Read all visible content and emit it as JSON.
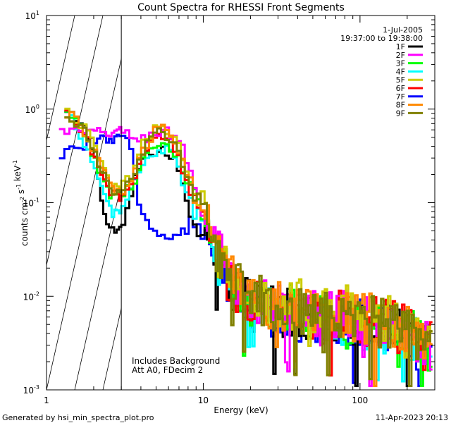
{
  "chart_data": {
    "type": "line",
    "title": "Count Spectra for RHESSI Front Segments",
    "xlabel": "Energy (keV)",
    "ylabel": "counts cm^-2 s^-1 keV^-1",
    "x_scale": "log",
    "y_scale": "log",
    "xlim": [
      1,
      300
    ],
    "ylim": [
      0.001,
      10
    ],
    "x_ticks": [
      {
        "value": 1,
        "label": "1"
      },
      {
        "value": 10,
        "label": "10"
      },
      {
        "value": 100,
        "label": "100"
      }
    ],
    "y_ticks": [
      {
        "value": 10,
        "base": "10",
        "exp": "1"
      },
      {
        "value": 1,
        "base": "10",
        "exp": "0"
      },
      {
        "value": 0.1,
        "base": "10",
        "exp": "-1"
      },
      {
        "value": 0.01,
        "base": "10",
        "exp": "-2"
      },
      {
        "value": 0.001,
        "base": "10",
        "exp": "-3"
      }
    ],
    "legend_position": "top-right",
    "date": "1-Jul-2005",
    "time_range": "19:37:00 to 19:38:00",
    "hatched_region_max_keV": 3,
    "annotations": [
      "Includes Background",
      "Att A0, FDecim 2"
    ],
    "series": [
      {
        "name": "1F",
        "color": "#000000",
        "anchors": [
          [
            1.3,
            0.95
          ],
          [
            1.5,
            0.78
          ],
          [
            1.8,
            0.58
          ],
          [
            2.1,
            0.25
          ],
          [
            2.4,
            0.06
          ],
          [
            2.7,
            0.05
          ],
          [
            3.0,
            0.05
          ],
          [
            3.3,
            0.08
          ],
          [
            3.7,
            0.2
          ],
          [
            4.2,
            0.3
          ],
          [
            5.0,
            0.36
          ],
          [
            5.5,
            0.38
          ],
          [
            6.2,
            0.3
          ],
          [
            7.0,
            0.24
          ],
          [
            7.8,
            0.1
          ],
          [
            8.5,
            0.07
          ],
          [
            9.5,
            0.05
          ],
          [
            10.5,
            0.06
          ],
          [
            11.5,
            0.028
          ],
          [
            13,
            0.02
          ],
          [
            16,
            0.012
          ],
          [
            20,
            0.008
          ],
          [
            30,
            0.007
          ],
          [
            50,
            0.006
          ],
          [
            80,
            0.0055
          ],
          [
            120,
            0.005
          ],
          [
            180,
            0.004
          ],
          [
            250,
            0.0033
          ],
          [
            290,
            0.0028
          ]
        ]
      },
      {
        "name": "2F",
        "color": "#ff00ff",
        "anchors": [
          [
            1.2,
            0.58
          ],
          [
            1.5,
            0.58
          ],
          [
            2.0,
            0.55
          ],
          [
            2.5,
            0.56
          ],
          [
            3.0,
            0.58
          ],
          [
            3.6,
            0.5
          ],
          [
            4.2,
            0.48
          ],
          [
            5.0,
            0.55
          ],
          [
            5.6,
            0.6
          ],
          [
            6.2,
            0.52
          ],
          [
            7.0,
            0.5
          ],
          [
            7.8,
            0.3
          ],
          [
            8.5,
            0.18
          ],
          [
            9.3,
            0.12
          ],
          [
            10,
            0.08
          ],
          [
            11,
            0.045
          ],
          [
            12,
            0.045
          ],
          [
            13,
            0.025
          ],
          [
            16,
            0.012
          ],
          [
            20,
            0.009
          ],
          [
            30,
            0.0075
          ],
          [
            50,
            0.0065
          ],
          [
            80,
            0.006
          ],
          [
            120,
            0.0055
          ],
          [
            180,
            0.0045
          ],
          [
            250,
            0.0036
          ],
          [
            290,
            0.003
          ]
        ]
      },
      {
        "name": "3F",
        "color": "#00ff00",
        "anchors": [
          [
            1.3,
            0.92
          ],
          [
            1.5,
            0.76
          ],
          [
            1.8,
            0.5
          ],
          [
            2.2,
            0.2
          ],
          [
            2.6,
            0.12
          ],
          [
            3.0,
            0.12
          ],
          [
            3.5,
            0.15
          ],
          [
            4.2,
            0.3
          ],
          [
            5.0,
            0.4
          ],
          [
            5.6,
            0.42
          ],
          [
            6.3,
            0.35
          ],
          [
            7.0,
            0.28
          ],
          [
            7.8,
            0.15
          ],
          [
            8.5,
            0.12
          ],
          [
            9.5,
            0.1
          ],
          [
            10.5,
            0.07
          ],
          [
            11.5,
            0.035
          ],
          [
            13,
            0.022
          ],
          [
            16,
            0.013
          ],
          [
            20,
            0.009
          ],
          [
            30,
            0.0075
          ],
          [
            50,
            0.0065
          ],
          [
            80,
            0.006
          ],
          [
            120,
            0.0055
          ],
          [
            180,
            0.0045
          ],
          [
            250,
            0.0035
          ],
          [
            290,
            0.0029
          ]
        ]
      },
      {
        "name": "4F",
        "color": "#00ffff",
        "anchors": [
          [
            1.3,
            0.9
          ],
          [
            1.5,
            0.75
          ],
          [
            1.8,
            0.4
          ],
          [
            2.2,
            0.15
          ],
          [
            2.6,
            0.08
          ],
          [
            3.0,
            0.08
          ],
          [
            3.5,
            0.14
          ],
          [
            4.2,
            0.28
          ],
          [
            5.0,
            0.35
          ],
          [
            5.6,
            0.38
          ],
          [
            6.3,
            0.32
          ],
          [
            7.0,
            0.25
          ],
          [
            7.8,
            0.12
          ],
          [
            8.5,
            0.09
          ],
          [
            9.5,
            0.07
          ],
          [
            10.5,
            0.06
          ],
          [
            11.5,
            0.03
          ],
          [
            13,
            0.02
          ],
          [
            16,
            0.012
          ],
          [
            20,
            0.0085
          ],
          [
            30,
            0.007
          ],
          [
            50,
            0.006
          ],
          [
            80,
            0.0055
          ],
          [
            120,
            0.005
          ],
          [
            180,
            0.004
          ],
          [
            250,
            0.0032
          ],
          [
            290,
            0.0026
          ]
        ]
      },
      {
        "name": "5F",
        "color": "#cccc00",
        "anchors": [
          [
            1.3,
            0.95
          ],
          [
            1.5,
            0.78
          ],
          [
            1.8,
            0.6
          ],
          [
            2.2,
            0.28
          ],
          [
            2.6,
            0.15
          ],
          [
            3.0,
            0.14
          ],
          [
            3.5,
            0.2
          ],
          [
            4.2,
            0.45
          ],
          [
            5.0,
            0.62
          ],
          [
            5.6,
            0.65
          ],
          [
            6.3,
            0.5
          ],
          [
            7.0,
            0.4
          ],
          [
            7.8,
            0.2
          ],
          [
            8.5,
            0.14
          ],
          [
            9.5,
            0.12
          ],
          [
            10.5,
            0.09
          ],
          [
            11.5,
            0.04
          ],
          [
            13,
            0.026
          ],
          [
            16,
            0.015
          ],
          [
            20,
            0.011
          ],
          [
            30,
            0.009
          ],
          [
            50,
            0.0075
          ],
          [
            80,
            0.007
          ],
          [
            120,
            0.006
          ],
          [
            180,
            0.005
          ],
          [
            250,
            0.004
          ],
          [
            290,
            0.0034
          ]
        ]
      },
      {
        "name": "6F",
        "color": "#ff0000",
        "anchors": [
          [
            1.3,
            0.9
          ],
          [
            1.5,
            0.72
          ],
          [
            1.8,
            0.5
          ],
          [
            2.2,
            0.2
          ],
          [
            2.6,
            0.12
          ],
          [
            3.0,
            0.12
          ],
          [
            3.5,
            0.16
          ],
          [
            4.2,
            0.35
          ],
          [
            5.0,
            0.5
          ],
          [
            5.6,
            0.55
          ],
          [
            6.3,
            0.42
          ],
          [
            7.0,
            0.35
          ],
          [
            7.8,
            0.16
          ],
          [
            8.5,
            0.12
          ],
          [
            9.5,
            0.1
          ],
          [
            10.5,
            0.075
          ],
          [
            11.5,
            0.035
          ],
          [
            13,
            0.022
          ],
          [
            16,
            0.013
          ],
          [
            20,
            0.009
          ],
          [
            30,
            0.0075
          ],
          [
            50,
            0.0065
          ],
          [
            80,
            0.006
          ],
          [
            120,
            0.0055
          ],
          [
            180,
            0.0045
          ],
          [
            250,
            0.0035
          ],
          [
            290,
            0.003
          ]
        ]
      },
      {
        "name": "7F",
        "color": "#0000ff",
        "anchors": [
          [
            1.2,
            0.33
          ],
          [
            1.5,
            0.38
          ],
          [
            2.0,
            0.45
          ],
          [
            2.5,
            0.5
          ],
          [
            3.0,
            0.48
          ],
          [
            3.4,
            0.42
          ],
          [
            3.8,
            0.12
          ],
          [
            4.3,
            0.07
          ],
          [
            5.0,
            0.045
          ],
          [
            6.0,
            0.042
          ],
          [
            7.0,
            0.045
          ],
          [
            7.8,
            0.05
          ],
          [
            8.5,
            0.06
          ],
          [
            9.5,
            0.05
          ],
          [
            10.5,
            0.045
          ],
          [
            11.5,
            0.03
          ],
          [
            13,
            0.018
          ],
          [
            16,
            0.011
          ],
          [
            20,
            0.0075
          ],
          [
            30,
            0.0065
          ],
          [
            50,
            0.006
          ],
          [
            80,
            0.0055
          ],
          [
            120,
            0.005
          ],
          [
            180,
            0.004
          ],
          [
            250,
            0.0032
          ],
          [
            290,
            0.0027
          ]
        ]
      },
      {
        "name": "8F",
        "color": "#ff8800",
        "anchors": [
          [
            1.3,
            0.95
          ],
          [
            1.5,
            0.78
          ],
          [
            1.8,
            0.55
          ],
          [
            2.2,
            0.25
          ],
          [
            2.6,
            0.14
          ],
          [
            3.0,
            0.13
          ],
          [
            3.5,
            0.18
          ],
          [
            4.2,
            0.4
          ],
          [
            5.0,
            0.58
          ],
          [
            5.6,
            0.6
          ],
          [
            6.3,
            0.45
          ],
          [
            7.0,
            0.38
          ],
          [
            7.8,
            0.18
          ],
          [
            8.5,
            0.13
          ],
          [
            9.5,
            0.11
          ],
          [
            10.5,
            0.085
          ],
          [
            11.5,
            0.04
          ],
          [
            13,
            0.024
          ],
          [
            16,
            0.014
          ],
          [
            20,
            0.01
          ],
          [
            30,
            0.008
          ],
          [
            50,
            0.007
          ],
          [
            80,
            0.0065
          ],
          [
            120,
            0.0058
          ],
          [
            180,
            0.0048
          ],
          [
            250,
            0.0037
          ],
          [
            290,
            0.0031
          ]
        ]
      },
      {
        "name": "9F",
        "color": "#808000",
        "anchors": [
          [
            1.3,
            0.95
          ],
          [
            1.5,
            0.75
          ],
          [
            1.8,
            0.55
          ],
          [
            2.2,
            0.23
          ],
          [
            2.6,
            0.13
          ],
          [
            3.0,
            0.13
          ],
          [
            3.5,
            0.17
          ],
          [
            4.2,
            0.38
          ],
          [
            5.0,
            0.55
          ],
          [
            5.6,
            0.58
          ],
          [
            6.3,
            0.44
          ],
          [
            7.0,
            0.36
          ],
          [
            7.8,
            0.17
          ],
          [
            8.5,
            0.12
          ],
          [
            9.5,
            0.1
          ],
          [
            10.5,
            0.08
          ],
          [
            11.5,
            0.038
          ],
          [
            13,
            0.023
          ],
          [
            16,
            0.013
          ],
          [
            20,
            0.0095
          ],
          [
            30,
            0.0078
          ],
          [
            50,
            0.0068
          ],
          [
            80,
            0.0062
          ],
          [
            120,
            0.0056
          ],
          [
            180,
            0.0046
          ],
          [
            250,
            0.0036
          ],
          [
            290,
            0.003
          ]
        ]
      }
    ]
  },
  "footer": {
    "generated_by": "Generated by hsi_min_spectra_plot.pro",
    "timestamp": "11-Apr-2023 20:13"
  }
}
